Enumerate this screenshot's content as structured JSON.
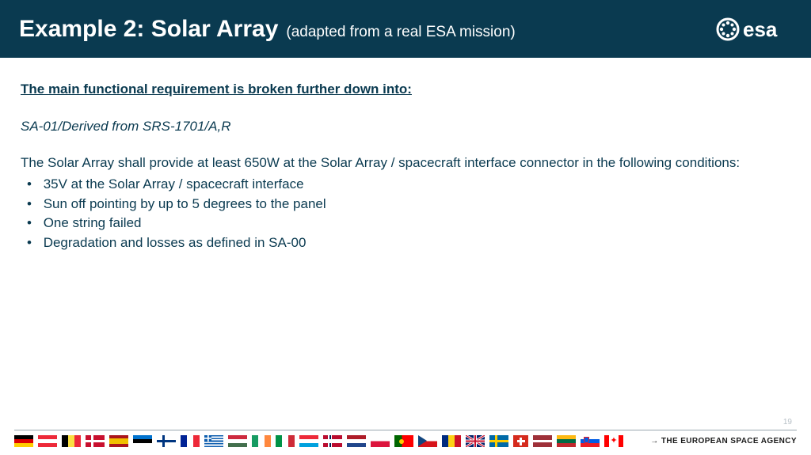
{
  "colors": {
    "header_bg": "#0a3a50",
    "text": "#0a3a50"
  },
  "header": {
    "title_main": "Example 2: Solar Array",
    "title_sub": "(adapted from a real ESA mission)",
    "logo_text": "esa"
  },
  "content": {
    "section_heading": "The main functional requirement is broken further down into:",
    "requirement_id": "SA-01/Derived from SRS-1701/A,R",
    "requirement_intro": "The Solar Array shall provide at least 650W at the Solar Array / spacecraft interface connector in the following conditions:",
    "conditions": [
      "35V at the Solar Array / spacecraft interface",
      "Sun off pointing by up to 5 degrees to the panel",
      "One string failed",
      "Degradation and losses as defined in SA-00"
    ]
  },
  "footer": {
    "page_number": "19",
    "tagline": "→ THE EUROPEAN SPACE AGENCY",
    "flags": [
      "de",
      "at",
      "be",
      "dk",
      "es",
      "ee",
      "fi",
      "fr",
      "gr",
      "hu",
      "ie",
      "it",
      "lu",
      "no",
      "nl",
      "pl",
      "pt",
      "cz",
      "ro",
      "gb",
      "se",
      "ch",
      "lv",
      "lt",
      "si",
      "ca"
    ]
  }
}
